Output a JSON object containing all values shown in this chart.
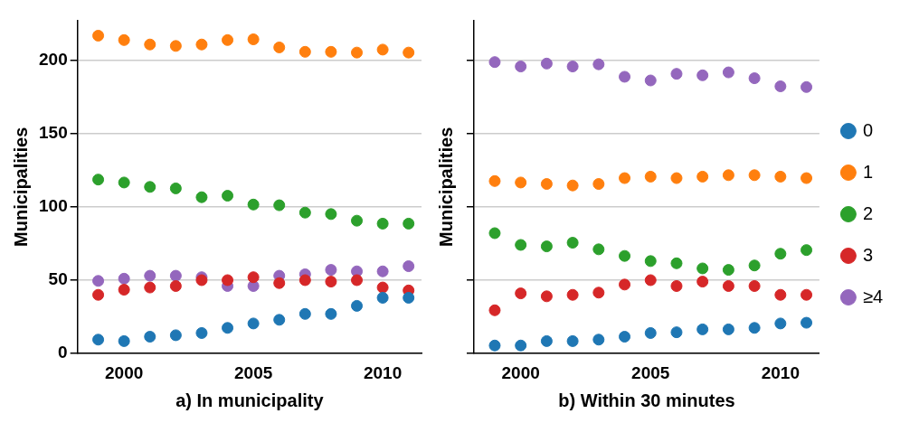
{
  "chart_data": [
    {
      "type": "scatter",
      "xlabel": "a) In municipality",
      "ylabel": "Municipalities",
      "x": [
        1999,
        2000,
        2001,
        2002,
        2003,
        2004,
        2005,
        2006,
        2007,
        2008,
        2009,
        2010,
        2011
      ],
      "xlim": [
        1998.2,
        2011.5
      ],
      "xticks": [
        2000,
        2005,
        2010
      ],
      "ylim": [
        0,
        227
      ],
      "yticks": [
        0,
        50,
        100,
        150,
        200
      ],
      "grid": "y",
      "legend": false,
      "marker": "circle",
      "series": [
        {
          "color": "#1f77b4",
          "values": [
            9.5,
            8.5,
            11.5,
            12.5,
            14,
            17.5,
            20.5,
            23,
            27,
            27,
            32.5,
            38,
            38
          ]
        },
        {
          "color": "#ff7f0e",
          "values": [
            216.5,
            213.5,
            210.5,
            209.5,
            210.5,
            213.5,
            214,
            208.5,
            205.5,
            205.5,
            205,
            207,
            205
          ]
        },
        {
          "color": "#2ca02c",
          "values": [
            118.5,
            116.5,
            113.5,
            112.5,
            106.5,
            107.5,
            101.5,
            101,
            96,
            95,
            90.5,
            88.5,
            88.5
          ]
        },
        {
          "color": "#d62728",
          "values": [
            40,
            43.5,
            45,
            46,
            50,
            50,
            52,
            48,
            50,
            49,
            50,
            45,
            43
          ]
        },
        {
          "color": "#9467bd",
          "values": [
            49.5,
            51,
            53,
            53,
            52,
            46,
            46,
            53,
            54,
            57,
            56,
            56,
            59.5
          ]
        }
      ]
    },
    {
      "type": "scatter",
      "xlabel": "b) Within 30 minutes",
      "ylabel": "Municipalities",
      "x": [
        1999,
        2000,
        2001,
        2002,
        2003,
        2004,
        2005,
        2006,
        2007,
        2008,
        2009,
        2010,
        2011
      ],
      "xlim": [
        1998.2,
        2011.5
      ],
      "xticks": [
        2000,
        2005,
        2010
      ],
      "ylim": [
        0,
        227
      ],
      "yticks": [
        0,
        50,
        100,
        150,
        200
      ],
      "grid": "y",
      "legend": "right",
      "tick_labels": "x",
      "marker": "circle",
      "series": [
        {
          "name": "0",
          "color": "#1f77b4",
          "values": [
            5.5,
            5.5,
            8.5,
            8.5,
            9.5,
            11.5,
            14,
            14.5,
            16.5,
            16.5,
            17.5,
            20.5,
            21
          ]
        },
        {
          "name": "1",
          "color": "#ff7f0e",
          "values": [
            117.5,
            116.5,
            115.5,
            114.5,
            115.5,
            119.5,
            120.5,
            119.5,
            120.5,
            121.5,
            121.5,
            120.5,
            119.5
          ]
        },
        {
          "name": "2",
          "color": "#2ca02c",
          "values": [
            82,
            74,
            73,
            75.5,
            71,
            66.5,
            63,
            61.5,
            58,
            57,
            60,
            68,
            70.5
          ]
        },
        {
          "name": "3",
          "color": "#d62728",
          "values": [
            29.5,
            41,
            39,
            40,
            41.5,
            47,
            50,
            46,
            49,
            46,
            46,
            40,
            40
          ]
        },
        {
          "name": "≥4",
          "color": "#9467bd",
          "values": [
            198.5,
            195.5,
            197.5,
            195.5,
            197,
            188.5,
            186,
            190.5,
            189.5,
            191.5,
            187.5,
            182,
            181.5
          ]
        }
      ]
    }
  ]
}
